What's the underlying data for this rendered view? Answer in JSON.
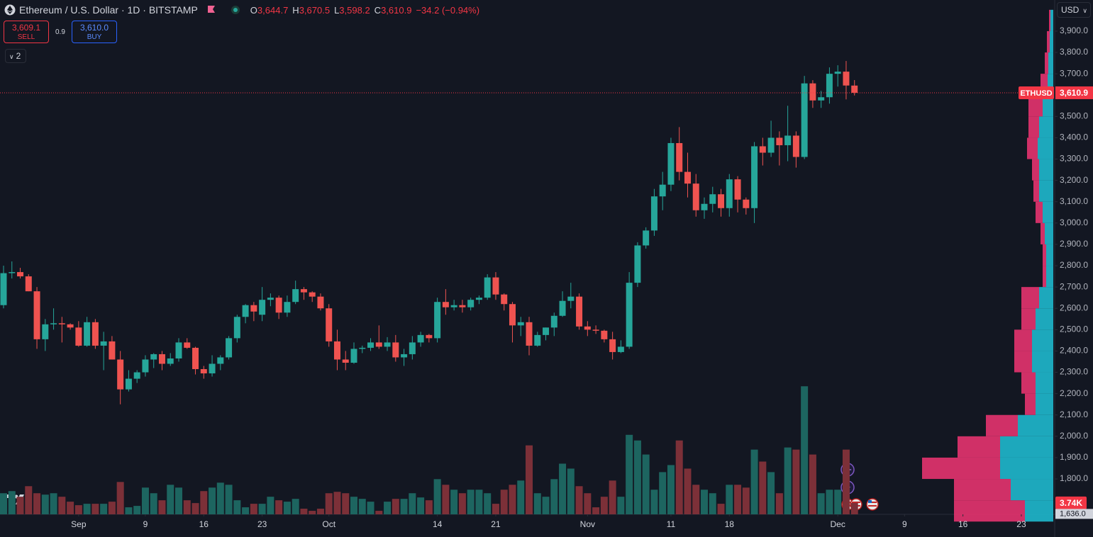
{
  "header": {
    "title": "Ethereum / U.S. Dollar · 1D · BITSTAMP",
    "open_key": "O",
    "open": "3,644.7",
    "high_key": "H",
    "high": "3,670.5",
    "low_key": "L",
    "low": "3,598.2",
    "close_key": "C",
    "close": "3,610.9",
    "change": "−34.2 (−0.94%)"
  },
  "trade": {
    "sell_price": "3,609.1",
    "sell": "SELL",
    "spread": "0.9",
    "buy_price": "3,610.0",
    "buy": "BUY"
  },
  "indicators_count": "2",
  "currency": "USD",
  "chart_data": {
    "type": "candlestick",
    "symbol": "ETHUSD",
    "last_price_label": "3,610.9",
    "volume_last_label": "3.74K",
    "up_color": "#26a69a",
    "down_color": "#ef5350",
    "volume_up_color": "#1d6560",
    "volume_down_color": "#7c3038",
    "x": [
      "08-23",
      "08-24",
      "08-25",
      "08-26",
      "08-27",
      "08-28",
      "08-29",
      "08-30",
      "08-31",
      "09-01",
      "09-02",
      "09-03",
      "09-04",
      "09-05",
      "09-06",
      "09-07",
      "09-08",
      "09-09",
      "09-10",
      "09-11",
      "09-12",
      "09-13",
      "09-14",
      "09-15",
      "09-16",
      "09-17",
      "09-18",
      "09-19",
      "09-20",
      "09-21",
      "09-22",
      "09-23",
      "09-24",
      "09-25",
      "09-26",
      "09-27",
      "09-28",
      "09-29",
      "09-30",
      "10-01",
      "10-02",
      "10-03",
      "10-04",
      "10-05",
      "10-06",
      "10-07",
      "10-08",
      "10-09",
      "10-10",
      "10-11",
      "10-12",
      "10-13",
      "10-14",
      "10-15",
      "10-16",
      "10-17",
      "10-18",
      "10-19",
      "10-20",
      "10-21",
      "10-22",
      "10-23",
      "10-24",
      "10-25",
      "10-26",
      "10-27",
      "10-28",
      "10-29",
      "10-30",
      "10-31",
      "11-01",
      "11-02",
      "11-03",
      "11-04",
      "11-05",
      "11-06",
      "11-07",
      "11-08",
      "11-09",
      "11-10",
      "11-11",
      "11-12",
      "11-13",
      "11-14",
      "11-15",
      "11-16",
      "11-17",
      "11-18",
      "11-19",
      "11-20",
      "11-21",
      "11-22",
      "11-23",
      "11-24",
      "11-25",
      "11-26",
      "11-27",
      "11-28",
      "11-29",
      "11-30",
      "12-01",
      "12-02",
      "12-03"
    ],
    "open": [
      2615,
      2765,
      2770,
      2750,
      2680,
      2455,
      2525,
      2530,
      2525,
      2510,
      2425,
      2535,
      2425,
      2445,
      2360,
      2220,
      2270,
      2300,
      2360,
      2385,
      2340,
      2365,
      2440,
      2415,
      2315,
      2295,
      2340,
      2370,
      2460,
      2560,
      2615,
      2570,
      2640,
      2650,
      2580,
      2630,
      2690,
      2675,
      2655,
      2600,
      2445,
      2360,
      2345,
      2410,
      2415,
      2440,
      2420,
      2440,
      2370,
      2385,
      2440,
      2475,
      2460,
      2630,
      2605,
      2615,
      2605,
      2640,
      2650,
      2745,
      2665,
      2620,
      2520,
      2535,
      2425,
      2475,
      2510,
      2565,
      2635,
      2655,
      2515,
      2500,
      2495,
      2455,
      2395,
      2420,
      2720,
      2895,
      2965,
      3125,
      3180,
      3375,
      3240,
      3185,
      3060,
      3090,
      3135,
      3070,
      3205,
      3110,
      3070,
      3360,
      3330,
      3400,
      3365,
      3410,
      3310,
      3655,
      3575,
      3590,
      3700,
      3710,
      3644.7
    ],
    "high": [
      2800,
      2820,
      2790,
      2760,
      2700,
      2550,
      2600,
      2560,
      2530,
      2540,
      2560,
      2550,
      2490,
      2470,
      2400,
      2310,
      2310,
      2380,
      2390,
      2400,
      2390,
      2460,
      2460,
      2420,
      2330,
      2380,
      2380,
      2470,
      2570,
      2620,
      2630,
      2700,
      2670,
      2660,
      2660,
      2730,
      2700,
      2680,
      2670,
      2620,
      2500,
      2400,
      2440,
      2425,
      2460,
      2520,
      2465,
      2475,
      2410,
      2470,
      2490,
      2480,
      2650,
      2690,
      2640,
      2640,
      2650,
      2660,
      2760,
      2770,
      2670,
      2630,
      2560,
      2560,
      2490,
      2510,
      2580,
      2680,
      2720,
      2670,
      2540,
      2520,
      2500,
      2490,
      2450,
      2770,
      2910,
      2980,
      3160,
      3240,
      3400,
      3450,
      3330,
      3230,
      3120,
      3170,
      3160,
      3230,
      3220,
      3120,
      3380,
      3400,
      3480,
      3430,
      3550,
      3430,
      3690,
      3670,
      3620,
      3730,
      3740,
      3760,
      3670.5
    ],
    "low": [
      2600,
      2740,
      2740,
      2680,
      2410,
      2400,
      2500,
      2440,
      2500,
      2420,
      2420,
      2410,
      2310,
      2360,
      2150,
      2210,
      2250,
      2280,
      2320,
      2310,
      2330,
      2350,
      2410,
      2290,
      2270,
      2280,
      2310,
      2360,
      2440,
      2530,
      2540,
      2540,
      2610,
      2550,
      2560,
      2620,
      2640,
      2630,
      2590,
      2420,
      2310,
      2310,
      2340,
      2390,
      2400,
      2410,
      2400,
      2350,
      2330,
      2360,
      2420,
      2440,
      2440,
      2570,
      2590,
      2580,
      2590,
      2620,
      2640,
      2640,
      2590,
      2440,
      2470,
      2380,
      2420,
      2450,
      2470,
      2560,
      2600,
      2500,
      2470,
      2480,
      2440,
      2360,
      2390,
      2410,
      2700,
      2880,
      2940,
      3060,
      3150,
      3200,
      3120,
      3030,
      3020,
      3050,
      3030,
      3030,
      3050,
      3040,
      3000,
      3270,
      3310,
      3270,
      3290,
      3260,
      3300,
      3540,
      3540,
      3560,
      3640,
      3580,
      3598.2
    ],
    "close": [
      2765,
      2770,
      2750,
      2680,
      2455,
      2525,
      2530,
      2525,
      2510,
      2425,
      2535,
      2425,
      2445,
      2360,
      2220,
      2270,
      2300,
      2360,
      2385,
      2340,
      2365,
      2440,
      2415,
      2315,
      2295,
      2340,
      2370,
      2460,
      2560,
      2615,
      2585,
      2640,
      2650,
      2580,
      2630,
      2690,
      2675,
      2655,
      2600,
      2445,
      2360,
      2345,
      2410,
      2415,
      2440,
      2420,
      2440,
      2370,
      2385,
      2440,
      2475,
      2460,
      2630,
      2605,
      2615,
      2605,
      2640,
      2650,
      2745,
      2665,
      2620,
      2520,
      2535,
      2425,
      2475,
      2510,
      2565,
      2635,
      2655,
      2515,
      2500,
      2495,
      2455,
      2395,
      2420,
      2720,
      2895,
      2965,
      3125,
      3180,
      3375,
      3240,
      3185,
      3060,
      3090,
      3135,
      3070,
      3205,
      3110,
      3070,
      3360,
      3330,
      3400,
      3365,
      3410,
      3310,
      3655,
      3575,
      3590,
      3700,
      3710,
      3645,
      3610.9
    ],
    "volume": [
      6900,
      7590,
      5750,
      9200,
      6900,
      6440,
      6900,
      5750,
      4140,
      2990,
      3450,
      3450,
      3450,
      4140,
      10580,
      2300,
      2760,
      8740,
      6900,
      4600,
      9660,
      8740,
      4600,
      3680,
      7590,
      8740,
      10350,
      9660,
      4600,
      2300,
      3450,
      3450,
      5750,
      4600,
      4140,
      5060,
      1840,
      1150,
      1840,
      6900,
      7360,
      6900,
      5750,
      5060,
      4140,
      1150,
      4140,
      5060,
      5060,
      6900,
      5520,
      4600,
      11500,
      9660,
      8050,
      6900,
      8050,
      8050,
      6900,
      3450,
      8050,
      9660,
      11040,
      22540,
      6900,
      5750,
      11500,
      16560,
      14950,
      9200,
      6900,
      2300,
      5750,
      11040,
      5750,
      25990,
      24150,
      19550,
      8050,
      13800,
      16100,
      24150,
      14950,
      9660,
      8050,
      6900,
      3450,
      9660,
      9660,
      8740,
      21160,
      17250,
      13800,
      6900,
      21850,
      21160,
      41860,
      19550,
      6900,
      8050,
      8050,
      21160,
      3740
    ],
    "vlim": [
      0,
      44000
    ],
    "xlim": [
      "08-23",
      "12-27"
    ],
    "xticks": [
      {
        "value": "09-01",
        "label": "Sep"
      },
      {
        "value": "09-09",
        "label": "9"
      },
      {
        "value": "09-16",
        "label": "16"
      },
      {
        "value": "09-23",
        "label": "23"
      },
      {
        "value": "10-01",
        "label": "Oct"
      },
      {
        "value": "10-14",
        "label": "14"
      },
      {
        "value": "10-21",
        "label": "21"
      },
      {
        "value": "11-01",
        "label": "Nov"
      },
      {
        "value": "11-11",
        "label": "11"
      },
      {
        "value": "11-18",
        "label": "18"
      },
      {
        "value": "12-01",
        "label": "Dec"
      },
      {
        "value": "12-09",
        "label": "9"
      },
      {
        "value": "12-16",
        "label": "16"
      },
      {
        "value": "12-23",
        "label": "23"
      }
    ],
    "ylim": [
      1634,
      4046
    ],
    "yticks": [
      {
        "value": 3900,
        "label": "3,900.0"
      },
      {
        "value": 3800,
        "label": "3,800.0"
      },
      {
        "value": 3700,
        "label": "3,700.0"
      },
      {
        "value": 3500,
        "label": "3,500.0"
      },
      {
        "value": 3400,
        "label": "3,400.0"
      },
      {
        "value": 3300,
        "label": "3,300.0"
      },
      {
        "value": 3200,
        "label": "3,200.0"
      },
      {
        "value": 3100,
        "label": "3,100.0"
      },
      {
        "value": 3000,
        "label": "3,000.0"
      },
      {
        "value": 2900,
        "label": "2,900.0"
      },
      {
        "value": 2800,
        "label": "2,800.0"
      },
      {
        "value": 2700,
        "label": "2,700.0"
      },
      {
        "value": 2600,
        "label": "2,600.0"
      },
      {
        "value": 2500,
        "label": "2,500.0"
      },
      {
        "value": 2400,
        "label": "2,400.0"
      },
      {
        "value": 2300,
        "label": "2,300.0"
      },
      {
        "value": 2200,
        "label": "2,200.0"
      },
      {
        "value": 2100,
        "label": "2,100.0"
      },
      {
        "value": 2000,
        "label": "2,000.0"
      },
      {
        "value": 1900,
        "label": "1,900.0"
      },
      {
        "value": 1800,
        "label": "1,800.0"
      }
    ],
    "bottom_marker": {
      "value": 1636,
      "label": "1,636.0"
    },
    "grid": false,
    "volume_profile": {
      "buy_color": "#1fb8cd",
      "sell_color": "#e5336f",
      "xlim": [
        0,
        200
      ],
      "price_levels": [
        1650,
        1750,
        1850,
        1950,
        2050,
        2150,
        2250,
        2350,
        2450,
        2550,
        2650,
        2750,
        2850,
        2950,
        3050,
        3150,
        3250,
        3350,
        3450,
        3550,
        3650,
        3750,
        3850,
        3950
      ],
      "buy": [
        40,
        60,
        75,
        75,
        50,
        25,
        25,
        30,
        30,
        25,
        20,
        10,
        10,
        12,
        15,
        20,
        20,
        22,
        20,
        15,
        8,
        7,
        5,
        4
      ],
      "sell": [
        100,
        80,
        110,
        60,
        45,
        15,
        20,
        25,
        25,
        20,
        25,
        5,
        5,
        6,
        10,
        8,
        10,
        15,
        15,
        20,
        10,
        5,
        4,
        2
      ]
    }
  }
}
